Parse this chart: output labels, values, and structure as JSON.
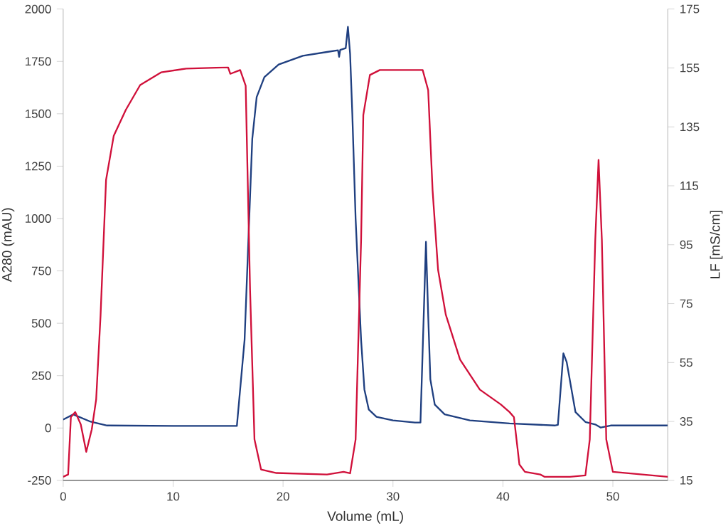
{
  "chart_data": {
    "type": "line",
    "xlabel": "Volume (mL)",
    "ylabel": "A280 (mAU)",
    "y2label": "LF [mS/cm]",
    "xlim": [
      0,
      55
    ],
    "xticks": [
      0,
      10,
      20,
      30,
      40,
      50
    ],
    "ylim": [
      -250,
      2000
    ],
    "yticks": [
      -250,
      0,
      250,
      500,
      750,
      1000,
      1250,
      1500,
      1750,
      2000
    ],
    "y2lim": [
      15,
      175
    ],
    "y2ticks": [
      15,
      35,
      55,
      75,
      95,
      115,
      135,
      155,
      175
    ],
    "grid": false,
    "marker": "none",
    "line_style": "solid",
    "series": [
      {
        "color": "#1f3f80",
        "axis": "y",
        "x": [
          0,
          0.9,
          2.5,
          4,
          10,
          15.8,
          16.5,
          17.2,
          17.6,
          18.3,
          19.6,
          21.8,
          24,
          25,
          25.1,
          25.2,
          25.7,
          25.9,
          26.1,
          26.3,
          26.6,
          27.1,
          27.4,
          27.8,
          28.5,
          30,
          32,
          32.5,
          33.0,
          33.2,
          33.4,
          33.8,
          34.7,
          37,
          40.6,
          44.7,
          45.0,
          45.5,
          45.8,
          46.6,
          47.5,
          48.4,
          48.9,
          49.8,
          55
        ],
        "values": [
          40,
          65,
          30,
          12,
          10,
          10,
          420,
          1380,
          1580,
          1675,
          1735,
          1777,
          1795,
          1803,
          1772,
          1805,
          1813,
          1915,
          1785,
          1500,
          1000,
          420,
          184,
          88,
          53,
          36,
          26,
          26,
          889,
          542,
          232,
          112,
          65,
          36,
          22,
          12,
          15,
          356,
          315,
          76,
          29,
          17,
          2,
          12,
          12
        ]
      },
      {
        "color": "#d0103a",
        "axis": "y2",
        "x": [
          0,
          0.45,
          0.7,
          1.1,
          1.6,
          2.1,
          2.6,
          3.0,
          3.4,
          3.9,
          4.6,
          5.7,
          7.0,
          8.9,
          11.2,
          15.0,
          15.2,
          16.1,
          16.6,
          17.0,
          17.4,
          18.0,
          19.4,
          24,
          25.5,
          26.1,
          26.6,
          27.1,
          27.3,
          27.9,
          28.8,
          32.7,
          33.2,
          33.6,
          34.1,
          34.8,
          36.1,
          37.9,
          39.8,
          40.6,
          41.0,
          41.5,
          42.0,
          43.4,
          43.8,
          46.1,
          47.5,
          47.9,
          48.4,
          48.7,
          49.0,
          49.4,
          50.0,
          55
        ],
        "values": [
          16.2,
          17,
          36.5,
          38.2,
          34,
          24.7,
          32.3,
          42.5,
          71,
          117,
          132,
          140.8,
          149.2,
          153.5,
          154.8,
          155.2,
          153,
          154.3,
          149,
          79.7,
          28.9,
          18.7,
          17.5,
          17,
          17.9,
          17.4,
          28.9,
          96.7,
          139,
          152.6,
          154.3,
          154.3,
          147.5,
          113.6,
          86.5,
          71.3,
          56,
          45.8,
          40.8,
          38.2,
          36.5,
          20.4,
          17.9,
          17,
          16.2,
          16.2,
          16.7,
          28.9,
          96.7,
          123.8,
          96.7,
          28.9,
          17.9,
          16.2
        ]
      }
    ]
  }
}
